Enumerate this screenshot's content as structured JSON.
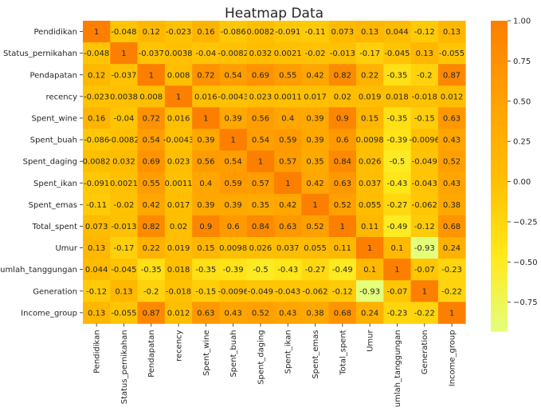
{
  "chart_data": {
    "type": "heatmap",
    "title": "Heatmap Data",
    "xlabel": "",
    "ylabel": "",
    "labels": [
      "Pendidikan",
      "Status_pernikahan",
      "Pendapatan",
      "recency",
      "Spent_wine",
      "Spent_buah",
      "Spent_daging",
      "Spent_ikan",
      "Spent_emas",
      "Total_spent",
      "Umur",
      "Jumlah_tanggungan",
      "Generation",
      "Income_group"
    ],
    "values": [
      [
        "1",
        "-0.048",
        "0.12",
        "-0.023",
        "0.16",
        "-0.086",
        "0.0082",
        "-0.091",
        "-0.11",
        "0.073",
        "0.13",
        "0.044",
        "-0.12",
        "0.13"
      ],
      [
        "-0.048",
        "1",
        "-0.037",
        "0.0038",
        "-0.04",
        "-0.0082",
        "0.032",
        "0.0021",
        "-0.02",
        "-0.013",
        "-0.17",
        "-0.045",
        "0.13",
        "-0.055"
      ],
      [
        "0.12",
        "-0.037",
        "1",
        "0.008",
        "0.72",
        "0.54",
        "0.69",
        "0.55",
        "0.42",
        "0.82",
        "0.22",
        "-0.35",
        "-0.2",
        "0.87"
      ],
      [
        "-0.023",
        "0.0038",
        "0.008",
        "1",
        "0.016",
        "-0.0043",
        "0.023",
        "0.0011",
        "0.017",
        "0.02",
        "0.019",
        "0.018",
        "-0.018",
        "0.012"
      ],
      [
        "0.16",
        "-0.04",
        "0.72",
        "0.016",
        "1",
        "0.39",
        "0.56",
        "0.4",
        "0.39",
        "0.9",
        "0.15",
        "-0.35",
        "-0.15",
        "0.63"
      ],
      [
        "-0.086",
        "-0.0082",
        "0.54",
        "-0.0043",
        "0.39",
        "1",
        "0.54",
        "0.59",
        "0.39",
        "0.6",
        "0.0098",
        "-0.39",
        "-0.0096",
        "0.43"
      ],
      [
        "0.0082",
        "0.032",
        "0.69",
        "0.023",
        "0.56",
        "0.54",
        "1",
        "0.57",
        "0.35",
        "0.84",
        "0.026",
        "-0.5",
        "-0.049",
        "0.52"
      ],
      [
        "-0.091",
        "0.0021",
        "0.55",
        "0.0011",
        "0.4",
        "0.59",
        "0.57",
        "1",
        "0.42",
        "0.63",
        "0.037",
        "-0.43",
        "-0.043",
        "0.43"
      ],
      [
        "-0.11",
        "-0.02",
        "0.42",
        "0.017",
        "0.39",
        "0.39",
        "0.35",
        "0.42",
        "1",
        "0.52",
        "0.055",
        "-0.27",
        "-0.062",
        "0.38"
      ],
      [
        "0.073",
        "-0.013",
        "0.82",
        "0.02",
        "0.9",
        "0.6",
        "0.84",
        "0.63",
        "0.52",
        "1",
        "0.11",
        "-0.49",
        "-0.12",
        "0.68"
      ],
      [
        "0.13",
        "-0.17",
        "0.22",
        "0.019",
        "0.15",
        "0.0098",
        "0.026",
        "0.037",
        "0.055",
        "0.11",
        "1",
        "0.1",
        "-0.93",
        "0.24"
      ],
      [
        "0.044",
        "-0.045",
        "-0.35",
        "0.018",
        "-0.35",
        "-0.39",
        "-0.5",
        "-0.43",
        "-0.27",
        "-0.49",
        "0.1",
        "1",
        "-0.07",
        "-0.23"
      ],
      [
        "-0.12",
        "0.13",
        "-0.2",
        "-0.018",
        "-0.15",
        "-0.0096",
        "-0.049",
        "-0.043",
        "-0.062",
        "-0.12",
        "-0.93",
        "-0.07",
        "1",
        "-0.22"
      ],
      [
        "0.13",
        "-0.055",
        "0.87",
        "0.012",
        "0.63",
        "0.43",
        "0.52",
        "0.43",
        "0.38",
        "0.68",
        "0.24",
        "-0.23",
        "-0.22",
        "1"
      ]
    ],
    "annotated": true,
    "colormap": "Wistia",
    "colors": [
      "#e4ff7a",
      "#ffe81a",
      "#ffbd00",
      "#ffa000",
      "#fc7f00"
    ],
    "colorbar": {
      "range": [
        -0.93,
        1.0
      ],
      "ticks": [
        "1.00",
        "0.75",
        "0.50",
        "0.25",
        "0.00",
        "−0.25",
        "−0.50",
        "−0.75"
      ]
    },
    "grid": false,
    "legend": "colorbar-right"
  }
}
